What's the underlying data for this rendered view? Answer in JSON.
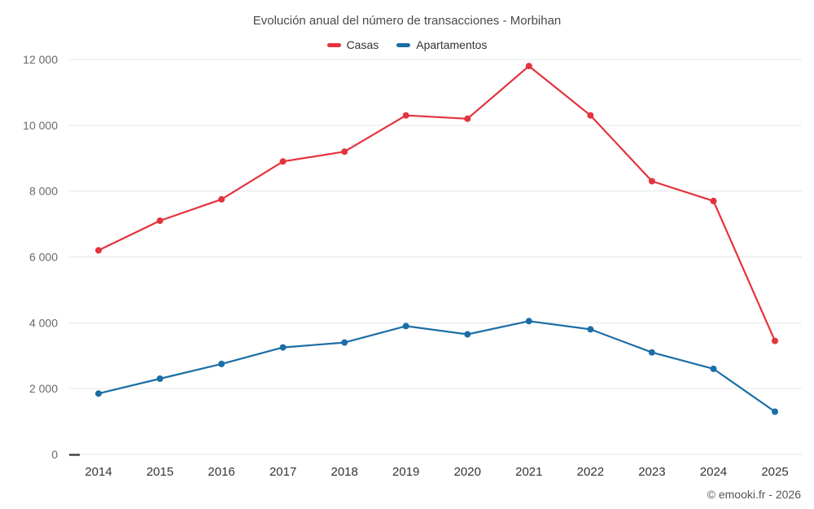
{
  "chart": {
    "title": "Evolución anual del número de transacciones - Morbihan",
    "footer": "© emooki.fr - 2026"
  },
  "chart_data": {
    "type": "line",
    "title": "Evolución anual del número de transacciones - Morbihan",
    "categories": [
      "2014",
      "2015",
      "2016",
      "2017",
      "2018",
      "2019",
      "2020",
      "2021",
      "2022",
      "2023",
      "2024",
      "2025"
    ],
    "series": [
      {
        "name": "Casas",
        "color": "#e4333d",
        "values": [
          6200,
          7100,
          7750,
          8900,
          9200,
          10300,
          10200,
          11800,
          10300,
          8300,
          7700,
          3450
        ]
      },
      {
        "name": "Apartamentos",
        "color": "#1b6ea5",
        "values": [
          1850,
          2300,
          2750,
          3250,
          3400,
          3900,
          3650,
          4050,
          3800,
          3100,
          2600,
          1300
        ]
      }
    ],
    "xlabel": "",
    "ylabel": "",
    "ylim": [
      0,
      12000
    ],
    "yticks": [
      {
        "value": 0,
        "label": "0"
      },
      {
        "value": 2000,
        "label": "2 000"
      },
      {
        "value": 4000,
        "label": "4 000"
      },
      {
        "value": 6000,
        "label": "6 000"
      },
      {
        "value": 8000,
        "label": "8 000"
      },
      {
        "value": 10000,
        "label": "10 000"
      },
      {
        "value": 12000,
        "label": "12 000"
      }
    ],
    "grid": "horizontal-only",
    "legend_position": "top-center",
    "colors": {
      "gridline": "#e6e6e6",
      "axis_tick": "#444444",
      "y_label": "#66696e",
      "x_label": "#333333",
      "background": "#ffffff"
    }
  }
}
